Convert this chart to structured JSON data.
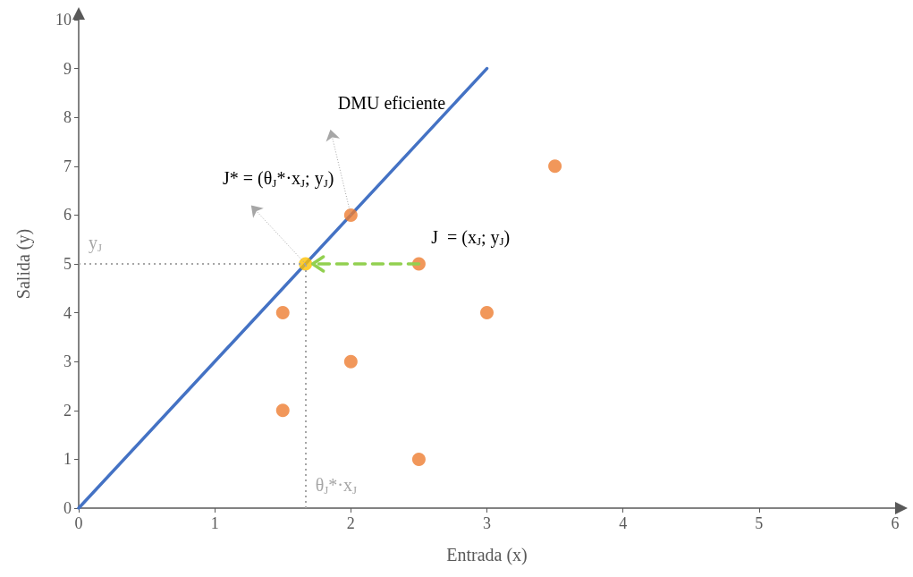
{
  "chart_data": {
    "type": "scatter",
    "xlabel": "Entrada (x)",
    "ylabel": "Salida (y)",
    "xlim": [
      0,
      6
    ],
    "ylim": [
      0,
      10
    ],
    "xticks": [
      0,
      1,
      2,
      3,
      4,
      5,
      6
    ],
    "yticks": [
      0,
      1,
      2,
      3,
      4,
      5,
      6,
      7,
      8,
      9,
      10
    ],
    "grid": false,
    "marker": "circle",
    "series": [
      {
        "type": "line",
        "color": "#4472c4",
        "x": [
          0,
          3
        ],
        "values": [
          0,
          9
        ],
        "marker": "none",
        "line_style": "solid"
      },
      {
        "color": "#ed7d31",
        "x": [
          1.5,
          1.5,
          2,
          2,
          2.5,
          2.5,
          3,
          3.5
        ],
        "values": [
          4,
          2,
          6,
          3,
          5,
          1,
          4,
          7
        ]
      },
      {
        "color": "#ffc000",
        "x": [
          1.667
        ],
        "values": [
          5
        ]
      }
    ],
    "ref_lines": [
      {
        "axis": "y",
        "value": 5,
        "label": "y$_{J}$",
        "color": "#a6a6a6",
        "line_style": "dotted"
      },
      {
        "axis": "x",
        "value": 1.667,
        "label": "θ$_{J}$*·x$_{J}$",
        "color": "#a6a6a6",
        "line_style": "dotted"
      }
    ],
    "annotations": [
      {
        "text": "DMU eficiente",
        "x": 2,
        "y": 6
      },
      {
        "text": "J* = (θ$_{J}$*·x$_{J}$; y$_{J}$)",
        "x": 1.667,
        "y": 5
      },
      {
        "text": "J  = (x$_{J}$; y$_{J}$)",
        "x": 2.5,
        "y": 5
      }
    ]
  }
}
